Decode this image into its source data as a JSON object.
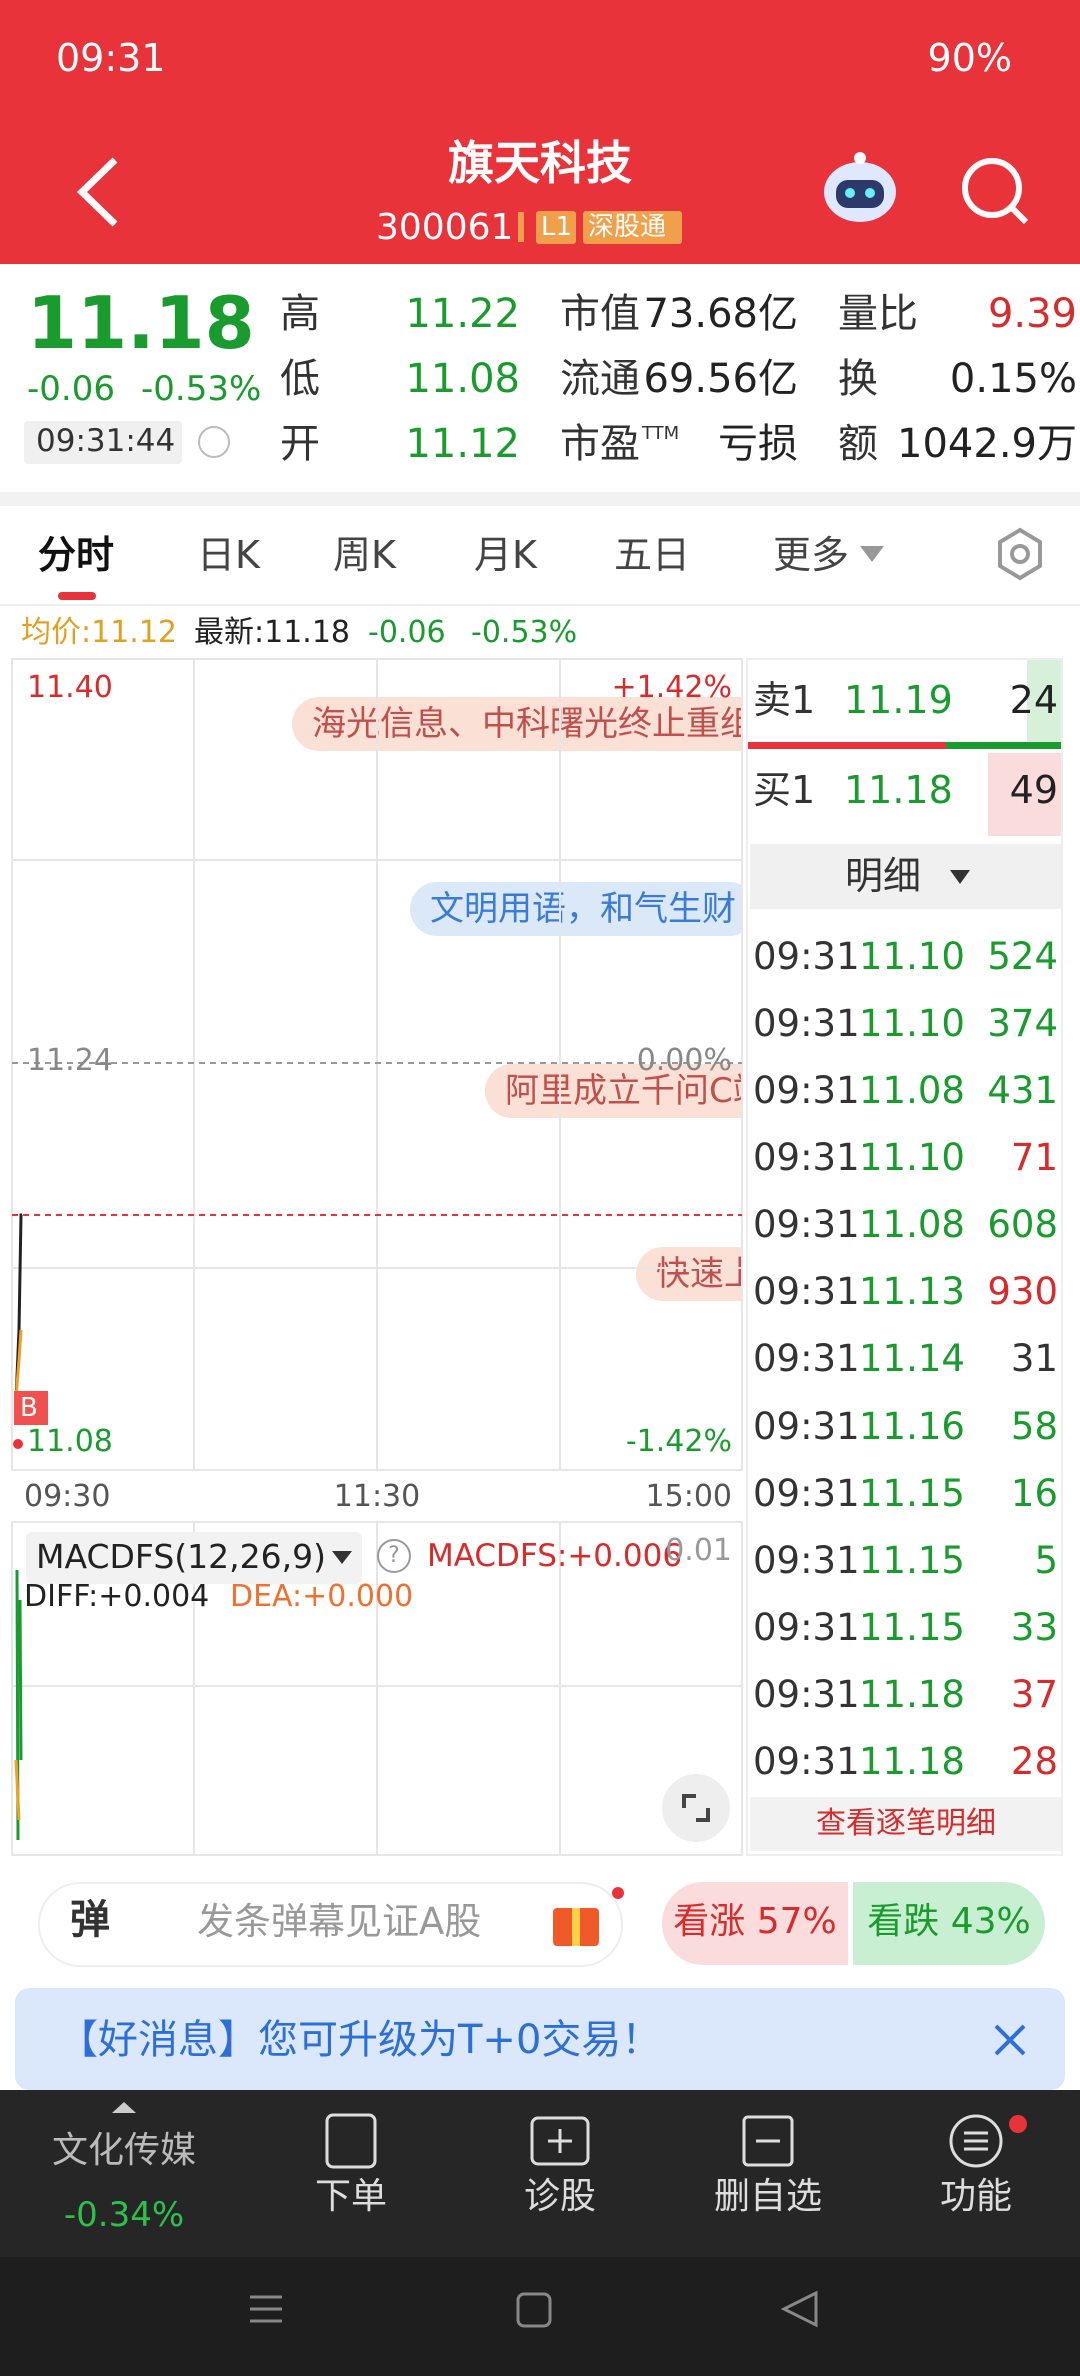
{
  "status": {
    "time": "09:31",
    "battery": "90%"
  },
  "header": {
    "title": "旗天科技",
    "code": "300061",
    "badges": [
      "L1",
      "深股通"
    ]
  },
  "quote": {
    "price": "11.18",
    "change": "-0.06",
    "change_pct": "-0.53%",
    "time": "09:31:44",
    "stats": [
      {
        "label": "高",
        "value": "11.22",
        "color": "#1a9b2e"
      },
      {
        "label": "市值",
        "value": "73.68亿",
        "color": "#222222"
      },
      {
        "label": "量比",
        "value": "9.39",
        "color": "#d82b2b"
      },
      {
        "label": "低",
        "value": "11.08",
        "color": "#1a9b2e"
      },
      {
        "label": "流通",
        "value": "69.56亿",
        "color": "#222222"
      },
      {
        "label": "换",
        "value": "0.15%",
        "color": "#222222"
      },
      {
        "label": "开",
        "value": "11.12",
        "color": "#1a9b2e"
      },
      {
        "label": "市盈",
        "sup": "TTM",
        "value": "亏损",
        "color": "#222222"
      },
      {
        "label": "额",
        "value": "1042.9万",
        "color": "#222222"
      }
    ]
  },
  "tabs": [
    "分时",
    "日K",
    "周K",
    "月K",
    "五日",
    "更多"
  ],
  "summary": {
    "avg": "均价:11.12",
    "latest": "最新:11.18",
    "change": "-0.06",
    "change_pct": "-0.53%"
  },
  "intraday": {
    "high": "11.40",
    "high_pct": "+1.42%",
    "mid": "11.24",
    "mid_pct": "0.00%",
    "low": "11.08",
    "low_pct": "-1.42%",
    "times": [
      "09:30",
      "11:30",
      "15:00"
    ],
    "marker": "B",
    "bubbles": [
      "海光信息、中科曙光终止重组",
      "文明用语，和气生财",
      "阿里成立千问C端事业群",
      "快速上涨"
    ]
  },
  "macd": {
    "name": "MACDFS(12,26,9)",
    "help": "?",
    "value": "MACDFS:+0.006",
    "scale": "0.01",
    "diff": "DIFF:+0.004",
    "dea": "DEA:+0.000"
  },
  "orderbook": {
    "sell": {
      "label": "卖1",
      "price": "11.19",
      "volume": "24"
    },
    "buy": {
      "label": "买1",
      "price": "11.18",
      "volume": "49"
    },
    "detail": "明细",
    "trades": [
      {
        "time": "09:31",
        "price": "11.10",
        "volume": "524",
        "color": "#1a9b2e"
      },
      {
        "time": "09:31",
        "price": "11.10",
        "volume": "374",
        "color": "#1a9b2e"
      },
      {
        "time": "09:31",
        "price": "11.08",
        "volume": "431",
        "color": "#1a9b2e"
      },
      {
        "time": "09:31",
        "price": "11.10",
        "volume": "71",
        "color": "#d82b2b"
      },
      {
        "time": "09:31",
        "price": "11.08",
        "volume": "608",
        "color": "#1a9b2e"
      },
      {
        "time": "09:31",
        "price": "11.13",
        "volume": "930",
        "color": "#d82b2b"
      },
      {
        "time": "09:31",
        "price": "11.14",
        "volume": "31",
        "color": "#333333"
      },
      {
        "time": "09:31",
        "price": "11.16",
        "volume": "58",
        "color": "#1a9b2e"
      },
      {
        "time": "09:31",
        "price": "11.15",
        "volume": "16",
        "color": "#1a9b2e"
      },
      {
        "time": "09:31",
        "price": "11.15",
        "volume": "5",
        "color": "#1a9b2e"
      },
      {
        "time": "09:31",
        "price": "11.15",
        "volume": "33",
        "color": "#1a9b2e"
      },
      {
        "time": "09:31",
        "price": "11.18",
        "volume": "37",
        "color": "#d82b2b"
      },
      {
        "time": "09:31",
        "price": "11.18",
        "volume": "28",
        "color": "#d82b2b"
      }
    ],
    "link": "查看逐笔明细"
  },
  "comment_bar": {
    "badge": "弹",
    "placeholder": "发条弹幕见证A股",
    "bull": "看涨 57%",
    "bear": "看跌 43%"
  },
  "banner": {
    "text": "【好消息】您可升级为T+0交易！"
  },
  "nav": {
    "sector": "文化传媒",
    "sector_change": "-0.34%",
    "items": [
      "下单",
      "诊股",
      "删自选",
      "功能"
    ]
  }
}
